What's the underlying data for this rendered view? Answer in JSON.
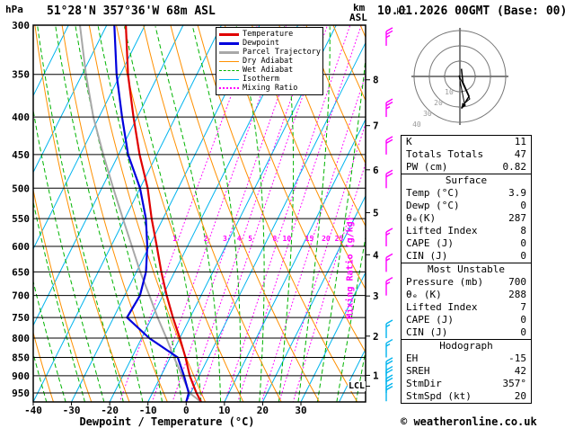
{
  "header": {
    "pressure_unit_label": "hPa",
    "station_title": "51°28'N 357°36'W 68m ASL",
    "datetime": "10.01.2026 00GMT (Base: 00)",
    "altitude_unit_label_km": "km",
    "altitude_unit_label_asl": "ASL"
  },
  "axes": {
    "x_label": "Dewpoint / Temperature (°C)",
    "x_ticks": [
      -40,
      -30,
      -20,
      -10,
      0,
      10,
      20,
      30
    ],
    "pressure_ticks": [
      300,
      350,
      400,
      450,
      500,
      550,
      600,
      650,
      700,
      750,
      800,
      850,
      900,
      950
    ],
    "km_ticks": [
      1,
      2,
      3,
      4,
      5,
      6,
      7,
      8
    ],
    "lcl_label": "LCL",
    "mixing_ratio_axis_label": "Mixing Ratio (g/kg)"
  },
  "colors": {
    "temperature": "#e00000",
    "dewpoint": "#0000dd",
    "parcel": "#a8a8a8",
    "dry_adiabat": "#ff9000",
    "wet_adiabat": "#00b400",
    "isotherm": "#00b4ee",
    "mixing_ratio": "#ff00ff",
    "grid": "#000000",
    "ring_label": "#999999"
  },
  "legend": {
    "items": [
      {
        "label": "Temperature",
        "color": "#e00000",
        "style": "solid",
        "weight": 3
      },
      {
        "label": "Dewpoint",
        "color": "#0000dd",
        "style": "solid",
        "weight": 3
      },
      {
        "label": "Parcel Trajectory",
        "color": "#a8a8a8",
        "style": "solid",
        "weight": 3
      },
      {
        "label": "Dry Adiabat",
        "color": "#ff9000",
        "style": "solid",
        "weight": 1
      },
      {
        "label": "Wet Adiabat",
        "color": "#00b400",
        "style": "dashed",
        "weight": 1
      },
      {
        "label": "Isotherm",
        "color": "#00b4ee",
        "style": "solid",
        "weight": 1
      },
      {
        "label": "Mixing Ratio",
        "color": "#ff00ff",
        "style": "dotted",
        "weight": 2
      }
    ]
  },
  "chart_data": {
    "type": "skewt_log_p",
    "pressure_range_hpa": [
      300,
      977
    ],
    "temp_axis_range_c": [
      -40,
      30
    ],
    "temperature_profile": [
      [
        300,
        -65
      ],
      [
        350,
        -58
      ],
      [
        400,
        -51
      ],
      [
        450,
        -44.5
      ],
      [
        500,
        -38
      ],
      [
        550,
        -33
      ],
      [
        600,
        -28
      ],
      [
        650,
        -23.5
      ],
      [
        700,
        -19
      ],
      [
        750,
        -14.5
      ],
      [
        800,
        -10
      ],
      [
        850,
        -6
      ],
      [
        900,
        -2.5
      ],
      [
        950,
        1.5
      ],
      [
        977,
        3.9
      ]
    ],
    "dewpoint_profile": [
      [
        300,
        -68
      ],
      [
        350,
        -61
      ],
      [
        400,
        -54
      ],
      [
        450,
        -47.5
      ],
      [
        500,
        -40
      ],
      [
        550,
        -34.5
      ],
      [
        600,
        -30.5
      ],
      [
        650,
        -27.5
      ],
      [
        700,
        -26
      ],
      [
        750,
        -26.5
      ],
      [
        800,
        -18
      ],
      [
        850,
        -8
      ],
      [
        900,
        -4
      ],
      [
        950,
        -0.5
      ],
      [
        977,
        0
      ]
    ],
    "parcel_profile": [
      [
        300,
        -77
      ],
      [
        350,
        -69
      ],
      [
        400,
        -61.5
      ],
      [
        450,
        -54
      ],
      [
        500,
        -47
      ],
      [
        550,
        -40.5
      ],
      [
        600,
        -34.5
      ],
      [
        650,
        -29
      ],
      [
        700,
        -23.5
      ],
      [
        750,
        -18.5
      ],
      [
        800,
        -13.5
      ],
      [
        850,
        -9
      ],
      [
        900,
        -4.5
      ],
      [
        950,
        -0.3
      ],
      [
        977,
        3.9
      ]
    ],
    "mixing_ratio_lines_g_kg": [
      1,
      2,
      3,
      4,
      5,
      8,
      10,
      15,
      20,
      25
    ],
    "isotherm_step_c": 10,
    "dry_adiabat_step_k": 10,
    "wet_adiabat_step_c": 5,
    "lcl_pressure_hpa": 930,
    "wind_barbs": [
      {
        "p": 320,
        "speed_kt": 25,
        "color": "#ff00ff"
      },
      {
        "p": 400,
        "speed_kt": 25,
        "color": "#ff00ff"
      },
      {
        "p": 450,
        "speed_kt": 20,
        "color": "#ff00ff"
      },
      {
        "p": 500,
        "speed_kt": 20,
        "color": "#ff00ff"
      },
      {
        "p": 600,
        "speed_kt": 15,
        "color": "#ff00ff"
      },
      {
        "p": 650,
        "speed_kt": 15,
        "color": "#ff00ff"
      },
      {
        "p": 700,
        "speed_kt": 15,
        "color": "#ff00ff"
      },
      {
        "p": 800,
        "speed_kt": 15,
        "color": "#00b4ee"
      },
      {
        "p": 850,
        "speed_kt": 15,
        "color": "#00b4ee"
      },
      {
        "p": 900,
        "speed_kt": 20,
        "color": "#00b4ee"
      },
      {
        "p": 925,
        "speed_kt": 20,
        "color": "#00b4ee"
      },
      {
        "p": 950,
        "speed_kt": 20,
        "color": "#00b4ee"
      },
      {
        "p": 975,
        "speed_kt": 20,
        "color": "#00b4ee"
      }
    ],
    "hodograph": {
      "unit_label": "kt",
      "ring_values_kt": [
        10,
        20,
        30,
        40
      ],
      "trace_uv_kt": [
        [
          1,
          5
        ],
        [
          2,
          -4
        ],
        [
          6,
          -13
        ],
        [
          1,
          -21
        ]
      ]
    }
  },
  "table": {
    "sections": [
      {
        "header": null,
        "rows": [
          [
            "K",
            "11"
          ],
          [
            "Totals Totals",
            "47"
          ],
          [
            "PW (cm)",
            "0.82"
          ]
        ]
      },
      {
        "header": "Surface",
        "rows": [
          [
            "Temp (°C)",
            "3.9"
          ],
          [
            "Dewp (°C)",
            "0"
          ],
          [
            "θₑ(K)",
            "287"
          ],
          [
            "Lifted Index",
            "8"
          ],
          [
            "CAPE (J)",
            "0"
          ],
          [
            "CIN (J)",
            "0"
          ]
        ]
      },
      {
        "header": "Most Unstable",
        "rows": [
          [
            "Pressure (mb)",
            "700"
          ],
          [
            "θₑ (K)",
            "288"
          ],
          [
            "Lifted Index",
            "7"
          ],
          [
            "CAPE (J)",
            "0"
          ],
          [
            "CIN (J)",
            "0"
          ]
        ]
      },
      {
        "header": "Hodograph",
        "rows": [
          [
            "EH",
            "-15"
          ],
          [
            "SREH",
            "42"
          ],
          [
            "StmDir",
            "357°"
          ],
          [
            "StmSpd (kt)",
            "20"
          ]
        ]
      }
    ]
  },
  "footer": {
    "copyright": "© weatheronline.co.uk"
  }
}
